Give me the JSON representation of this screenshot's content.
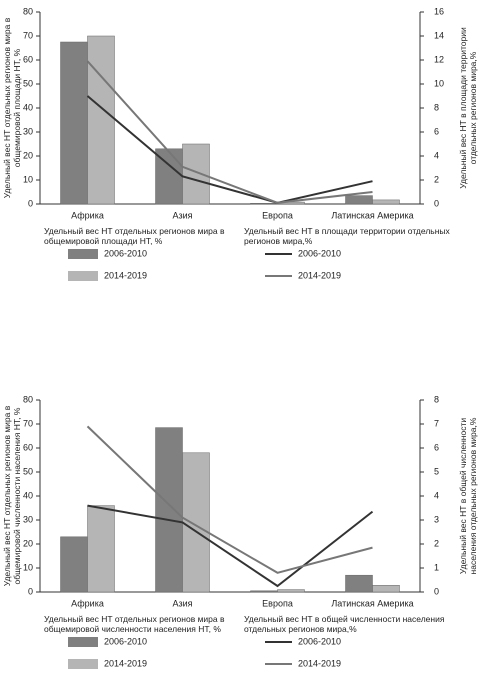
{
  "chart_data": [
    {
      "type": "bar_line",
      "categories": [
        "Африка",
        "Азия",
        "Европа",
        "Латинская Америка"
      ],
      "y_label": "Удельный вес НТ отдельных регионов мира в общемировой площади НТ, %",
      "y2_label": "Удельный вес НТ в площади территории отдельных регионов мира,%",
      "ylim": [
        0,
        80
      ],
      "yticks": [
        0,
        10,
        20,
        30,
        40,
        50,
        60,
        70,
        80
      ],
      "y2lim": [
        0,
        16
      ],
      "y2ticks": [
        0,
        2,
        4,
        6,
        8,
        10,
        12,
        14,
        16
      ],
      "series": [
        {
          "name": "2006-2010",
          "kind": "bar",
          "color": "#808080",
          "values": [
            67.5,
            23,
            0.3,
            3.5
          ]
        },
        {
          "name": "2014-2019",
          "kind": "bar",
          "color": "#b5b5b5",
          "values": [
            70,
            25,
            0.8,
            1.7
          ]
        },
        {
          "name": "2006-2010",
          "kind": "line",
          "axis": "y2",
          "color": "#333333",
          "values": [
            9,
            2.3,
            0.1,
            1.9
          ]
        },
        {
          "name": "2014-2019",
          "kind": "line",
          "axis": "y2",
          "color": "#777777",
          "values": [
            11.9,
            3.1,
            0.1,
            1.0
          ]
        }
      ]
    },
    {
      "type": "bar_line",
      "categories": [
        "Африка",
        "Азия",
        "Европа",
        "Латинская Америка"
      ],
      "y_label": "Удельный вес НТ отдельных регионов мира в общемировой численности населения НТ, %",
      "y2_label": "Удельный вес НТ в общей численности населения отдельных регионов мира,%",
      "ylim": [
        0,
        80
      ],
      "yticks": [
        0,
        10,
        20,
        30,
        40,
        50,
        60,
        70,
        80
      ],
      "y2lim": [
        0,
        8
      ],
      "y2ticks": [
        0,
        1,
        2,
        3,
        4,
        5,
        6,
        7,
        8
      ],
      "series": [
        {
          "name": "2006-2010",
          "kind": "bar",
          "color": "#808080",
          "values": [
            23,
            68.5,
            0.5,
            7
          ]
        },
        {
          "name": "2014-2019",
          "kind": "bar",
          "color": "#b5b5b5",
          "values": [
            36,
            58,
            1,
            2.8
          ]
        },
        {
          "name": "2006-2010",
          "kind": "line",
          "axis": "y2",
          "color": "#333333",
          "values": [
            3.6,
            2.9,
            0.25,
            3.35
          ]
        },
        {
          "name": "2014-2019",
          "kind": "line",
          "axis": "y2",
          "color": "#777777",
          "values": [
            6.9,
            3.1,
            0.8,
            1.85
          ]
        }
      ]
    }
  ]
}
